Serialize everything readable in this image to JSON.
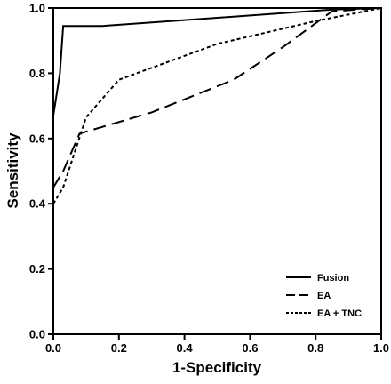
{
  "chart_data": {
    "type": "line",
    "title": "",
    "xlabel": "1-Specificity",
    "ylabel": "Sensitivity",
    "xlim": [
      0,
      1
    ],
    "ylim": [
      0,
      1
    ],
    "x_ticks": [
      "0.0",
      "0.2",
      "0.4",
      "0.6",
      "0.8",
      "1.0"
    ],
    "y_ticks": [
      "0.0",
      "0.2",
      "0.4",
      "0.6",
      "0.8",
      "1.0"
    ],
    "grid": false,
    "legend_position": "bottom-right",
    "series": [
      {
        "name": "Fusion",
        "style": "solid",
        "x": [
          0,
          0.02,
          0.03,
          0.15,
          0.5,
          0.85,
          1.0
        ],
        "y": [
          0.67,
          0.8,
          0.945,
          0.945,
          0.97,
          0.995,
          1.0
        ]
      },
      {
        "name": "EA",
        "style": "dashed",
        "x": [
          0,
          0.03,
          0.08,
          0.3,
          0.55,
          0.7,
          0.85,
          1.0
        ],
        "y": [
          0.45,
          0.5,
          0.615,
          0.68,
          0.78,
          0.88,
          0.99,
          1.0
        ]
      },
      {
        "name": "EA + TNC",
        "style": "dotted",
        "x": [
          0,
          0.03,
          0.1,
          0.2,
          0.5,
          0.8,
          1.0
        ],
        "y": [
          0.4,
          0.45,
          0.665,
          0.78,
          0.89,
          0.96,
          1.0
        ]
      }
    ]
  }
}
